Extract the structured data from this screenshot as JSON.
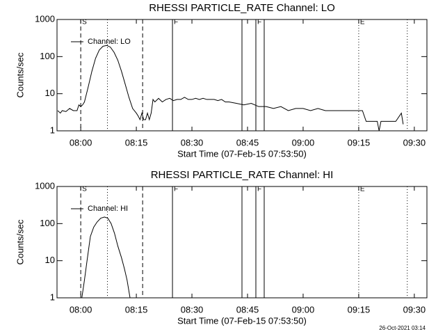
{
  "chart_data": [
    {
      "type": "line",
      "title": "RHESSI PARTICLE_RATE Channel: LO",
      "xlabel": "Start Time (07-Feb-15 07:53:50)",
      "ylabel": "Counts/sec",
      "log_y": true,
      "color": "#000000",
      "xlim": [
        473.6,
        573.4
      ],
      "ylim": [
        1,
        1000
      ],
      "yticks": [
        1,
        10,
        100,
        1000
      ],
      "xticks": [
        {
          "value": 480,
          "label": "08:00"
        },
        {
          "value": 495,
          "label": "08:15"
        },
        {
          "value": 510,
          "label": "08:30"
        },
        {
          "value": 525,
          "label": "08:45"
        },
        {
          "value": 540,
          "label": "09:00"
        },
        {
          "value": 555,
          "label": "09:15"
        },
        {
          "value": 570,
          "label": "09:30"
        }
      ],
      "vlines": [
        {
          "x": 480,
          "style": "dashed",
          "label": "S"
        },
        {
          "x": 487.2,
          "style": "dotted"
        },
        {
          "x": 496.7,
          "style": "dashed"
        },
        {
          "x": 504.75,
          "style": "solid",
          "label": "F"
        },
        {
          "x": 523.5,
          "style": "solid"
        },
        {
          "x": 527.25,
          "style": "solid",
          "label": "F"
        },
        {
          "x": 529.5,
          "style": "solid"
        },
        {
          "x": 555,
          "style": "dotted",
          "label": "E"
        },
        {
          "x": 568.1,
          "style": "dotted"
        }
      ],
      "series": [
        {
          "name": "Channel: LO",
          "color": "#000000",
          "x": [
            473.8,
            474.5,
            475,
            476,
            477,
            478,
            479,
            479.5,
            480,
            480.5,
            481,
            482,
            483,
            484,
            485,
            486,
            487,
            488,
            489,
            490,
            491,
            492,
            493,
            494,
            495,
            495.5,
            496,
            496.5,
            497,
            497.5,
            498,
            498.5,
            499,
            499.5,
            500,
            501,
            502,
            503,
            504,
            505,
            506,
            507,
            508,
            509,
            510,
            511,
            512,
            513,
            514,
            515,
            516,
            517,
            518,
            519,
            520,
            522,
            524,
            526,
            528,
            530,
            532,
            534,
            536,
            538,
            540,
            542,
            544,
            546,
            548,
            550,
            552,
            554,
            556,
            557,
            558,
            560,
            560.5,
            561,
            563,
            565,
            566.5,
            567
          ],
          "values": [
            3.5,
            3,
            3.5,
            3.3,
            4,
            3.5,
            3.5,
            5,
            4.5,
            5,
            6,
            15,
            40,
            90,
            150,
            190,
            200,
            180,
            130,
            80,
            40,
            18,
            8,
            4,
            3,
            2.5,
            2,
            3,
            2,
            2,
            3,
            2,
            3,
            7,
            6,
            7.5,
            6,
            7,
            7.5,
            6.5,
            7,
            7,
            8,
            7,
            7,
            7.5,
            7,
            7.5,
            7,
            7,
            7,
            6.5,
            7,
            6,
            6,
            5.5,
            5,
            5.5,
            4.5,
            4.5,
            4,
            4.5,
            3.5,
            4,
            4,
            3.5,
            4,
            3.5,
            3.5,
            3.5,
            3.5,
            3.5,
            3.5,
            1.8,
            1.8,
            1.8,
            1,
            1.8,
            1.8,
            1.8,
            3,
            1.5
          ]
        }
      ]
    },
    {
      "type": "line",
      "title": "RHESSI PARTICLE_RATE Channel: HI",
      "xlabel": "Start Time (07-Feb-15 07:53:50)",
      "ylabel": "Counts/sec",
      "log_y": true,
      "color": "#000000",
      "xlim": [
        473.6,
        573.4
      ],
      "ylim": [
        1,
        1000
      ],
      "yticks": [
        1,
        10,
        100,
        1000
      ],
      "xticks": [
        {
          "value": 480,
          "label": "08:00"
        },
        {
          "value": 495,
          "label": "08:15"
        },
        {
          "value": 510,
          "label": "08:30"
        },
        {
          "value": 525,
          "label": "08:45"
        },
        {
          "value": 540,
          "label": "09:00"
        },
        {
          "value": 555,
          "label": "09:15"
        },
        {
          "value": 570,
          "label": "09:30"
        }
      ],
      "vlines": [
        {
          "x": 480,
          "style": "dashed",
          "label": "S"
        },
        {
          "x": 487.2,
          "style": "dotted"
        },
        {
          "x": 496.7,
          "style": "dashed"
        },
        {
          "x": 504.75,
          "style": "solid",
          "label": "F"
        },
        {
          "x": 523.5,
          "style": "solid"
        },
        {
          "x": 527.25,
          "style": "solid",
          "label": "F"
        },
        {
          "x": 529.5,
          "style": "solid"
        },
        {
          "x": 555,
          "style": "dotted",
          "label": "E"
        },
        {
          "x": 568.1,
          "style": "dotted"
        }
      ],
      "series": [
        {
          "name": "Channel: HI",
          "color": "#000000",
          "x": [
            480.3,
            481,
            481.7,
            482.6,
            483.5,
            484.4,
            485.4,
            486.4,
            487.3,
            488.2,
            489.1,
            490,
            491,
            491.8,
            492.5,
            493.3
          ],
          "values": [
            1,
            3,
            10,
            45,
            80,
            110,
            140,
            150,
            140,
            100,
            55,
            25,
            12,
            6,
            3,
            1
          ]
        }
      ]
    }
  ],
  "timestamp": "26-Oct-2021 03:14"
}
